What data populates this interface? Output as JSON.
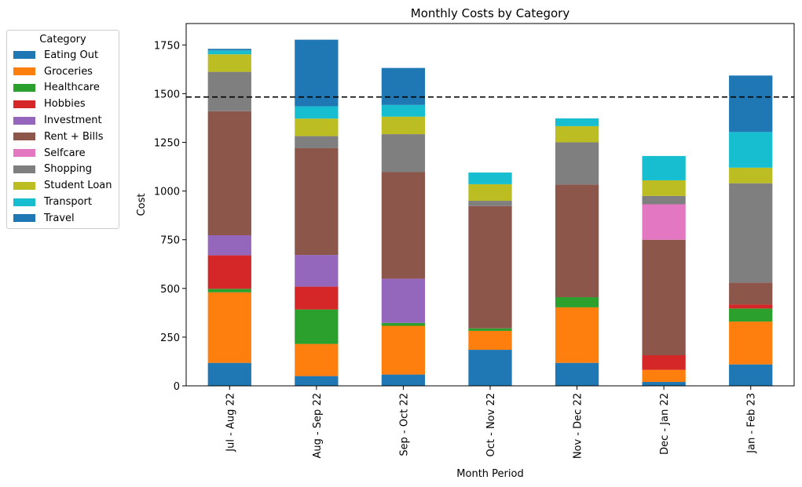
{
  "chart_data": {
    "type": "bar",
    "stacked": true,
    "title": "Monthly Costs by Category",
    "xlabel": "Month Period",
    "ylabel": "Cost",
    "ylim": [
      0,
      1860
    ],
    "yticks": [
      0,
      250,
      500,
      750,
      1000,
      1250,
      1500,
      1750
    ],
    "reference_line": {
      "value": 1483,
      "style": "dashed",
      "color": "#000000"
    },
    "categories": [
      "Jul - Aug 22",
      "Aug - Sep 22",
      "Sep - Oct 22",
      "Oct - Nov 22",
      "Nov - Dec 22",
      "Dec - Jan 22",
      "Jan - Feb 23"
    ],
    "legend": {
      "title": "Category",
      "placement": "outside-left"
    },
    "series": [
      {
        "name": "Eating Out",
        "color": "#1f77b4",
        "values": [
          118,
          50,
          58,
          185,
          118,
          20,
          110
        ]
      },
      {
        "name": "Groceries",
        "color": "#ff7f0e",
        "values": [
          362,
          165,
          250,
          97,
          285,
          62,
          220
        ]
      },
      {
        "name": "Healthcare",
        "color": "#2ca02c",
        "values": [
          18,
          177,
          15,
          13,
          52,
          0,
          67
        ]
      },
      {
        "name": "Hobbies",
        "color": "#d62728",
        "values": [
          172,
          117,
          0,
          0,
          0,
          75,
          20
        ]
      },
      {
        "name": "Investment",
        "color": "#9467bd",
        "values": [
          103,
          163,
          227,
          0,
          0,
          0,
          0
        ]
      },
      {
        "name": "Rent + Bills",
        "color": "#8c564b",
        "values": [
          637,
          548,
          547,
          628,
          578,
          593,
          113
        ]
      },
      {
        "name": "Selfcare",
        "color": "#e377c2",
        "values": [
          0,
          0,
          0,
          0,
          0,
          182,
          0
        ]
      },
      {
        "name": "Shopping",
        "color": "#7f7f7f",
        "values": [
          202,
          62,
          195,
          27,
          217,
          43,
          510
        ]
      },
      {
        "name": "Student Loan",
        "color": "#bcbd22",
        "values": [
          90,
          90,
          90,
          85,
          83,
          80,
          80
        ]
      },
      {
        "name": "Transport",
        "color": "#17becf",
        "values": [
          20,
          63,
          60,
          60,
          40,
          125,
          183
        ]
      },
      {
        "name": "Travel",
        "color": "#1f77b4",
        "values": [
          8,
          342,
          190,
          0,
          0,
          0,
          290
        ]
      }
    ]
  }
}
